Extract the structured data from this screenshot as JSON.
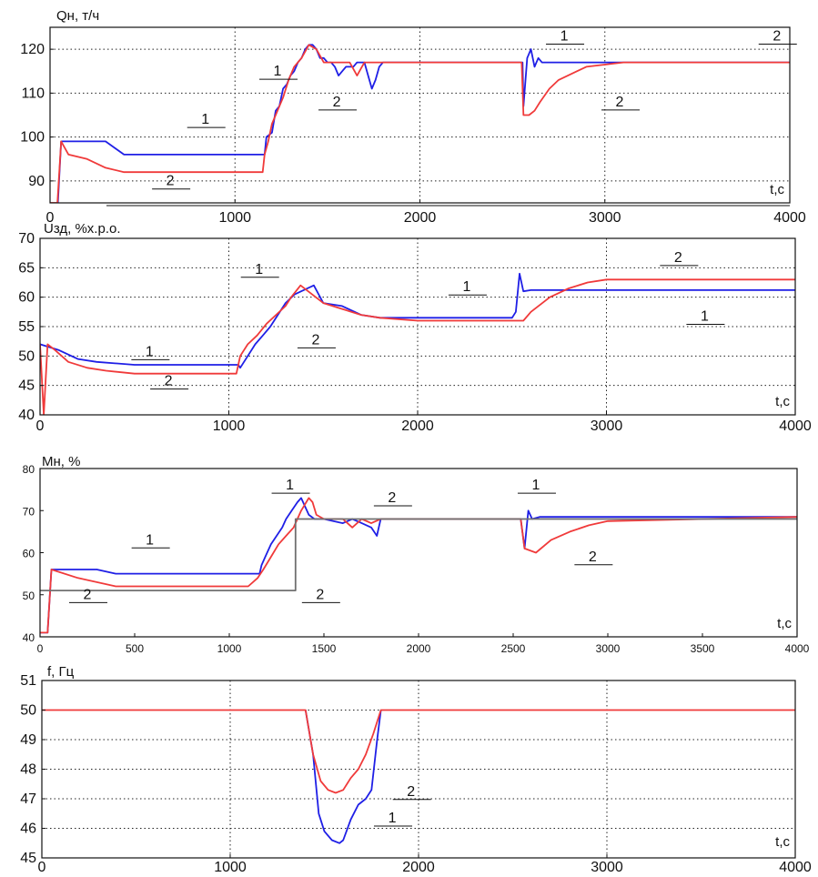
{
  "colors": {
    "series1": "#1f1fe6",
    "series2": "#f03a3a",
    "gray": "#707070",
    "grid": "#222222"
  },
  "chart_data": [
    {
      "type": "line",
      "title": "Qн, т/ч",
      "xlabel": "t,c",
      "xlim": [
        0,
        4000
      ],
      "ylim": [
        85,
        125
      ],
      "xticks": [
        0,
        1000,
        2000,
        3000,
        4000
      ],
      "yticks": [
        90,
        100,
        110,
        120
      ],
      "grid": true,
      "series": [
        {
          "name": "1",
          "color": "#1f1fe6",
          "x": [
            0,
            40,
            60,
            300,
            400,
            1160,
            1170,
            1200,
            1220,
            1240,
            1260,
            1280,
            1300,
            1320,
            1340,
            1360,
            1380,
            1400,
            1420,
            1440,
            1460,
            1480,
            1500,
            1520,
            1540,
            1560,
            1580,
            1600,
            1620,
            1640,
            1660,
            1680,
            1700,
            1720,
            1740,
            1760,
            1780,
            1800,
            1830,
            1850,
            2000,
            2050,
            2100,
            2555,
            2560,
            2580,
            2600,
            2620,
            2640,
            2660,
            2700,
            3000,
            4000
          ],
          "y": [
            83,
            83,
            99,
            99,
            96,
            96,
            100,
            101,
            106,
            107,
            111,
            112,
            114,
            115,
            117,
            118,
            120,
            121,
            121,
            120,
            118,
            118,
            117,
            117,
            116,
            114,
            115,
            116,
            116,
            116,
            117,
            117,
            117,
            114,
            111,
            113,
            116,
            117,
            117,
            117,
            117,
            117,
            117,
            117,
            107,
            118,
            120,
            116,
            118,
            117,
            117,
            117,
            117
          ]
        },
        {
          "name": "2",
          "color": "#f03a3a",
          "x": [
            0,
            40,
            60,
            100,
            200,
            300,
            400,
            500,
            1100,
            1150,
            1160,
            1180,
            1200,
            1230,
            1260,
            1290,
            1320,
            1360,
            1400,
            1440,
            1480,
            1520,
            1560,
            1580,
            1620,
            1660,
            1700,
            1720,
            1760,
            1800,
            1850,
            2000,
            2100,
            2550,
            2560,
            2590,
            2620,
            2650,
            2700,
            2750,
            2800,
            2900,
            3000,
            3100,
            4000
          ],
          "y": [
            85,
            85,
            99,
            96,
            95,
            93,
            92,
            92,
            92,
            92,
            96,
            99,
            103,
            106,
            109,
            113,
            116,
            118,
            121,
            120,
            117,
            117,
            117,
            117,
            117,
            114,
            117,
            117,
            117,
            117,
            117,
            117,
            117,
            117,
            105,
            105,
            106,
            108,
            111,
            113,
            114,
            116,
            116.5,
            117,
            117
          ]
        }
      ],
      "annotations": [
        {
          "text": "1",
          "x": 840,
          "y": 103
        },
        {
          "text": "2",
          "x": 650,
          "y": 89
        },
        {
          "text": "1",
          "x": 1230,
          "y": 114
        },
        {
          "text": "2",
          "x": 1550,
          "y": 107
        },
        {
          "text": "1",
          "x": 2780,
          "y": 122
        },
        {
          "text": "2",
          "x": 3080,
          "y": 107
        },
        {
          "text": "2",
          "x": 3930,
          "y": 122
        }
      ]
    },
    {
      "type": "line",
      "title": "Uзд, %х.р.о.",
      "xlabel": "t,c",
      "xlim": [
        0,
        4000
      ],
      "ylim": [
        40,
        70
      ],
      "xticks": [
        0,
        1000,
        2000,
        3000,
        4000
      ],
      "yticks": [
        40,
        45,
        50,
        55,
        60,
        65,
        70
      ],
      "grid": true,
      "series": [
        {
          "name": "1",
          "color": "#1f1fe6",
          "x": [
            0,
            100,
            200,
            300,
            500,
            1050,
            1060,
            1100,
            1140,
            1180,
            1220,
            1260,
            1300,
            1350,
            1450,
            1500,
            1600,
            1700,
            1800,
            2000,
            2500,
            2520,
            2540,
            2560,
            2600,
            2640,
            3000,
            4000
          ],
          "y": [
            52,
            51,
            49.5,
            49,
            48.5,
            48.5,
            48,
            50,
            52,
            53.5,
            55,
            57,
            59,
            60.5,
            62,
            59,
            58.5,
            57,
            56.5,
            56.5,
            56.5,
            57.5,
            64,
            61,
            61.2,
            61.2,
            61.2,
            61.2
          ]
        },
        {
          "name": "2",
          "color": "#f03a3a",
          "x": [
            0,
            20,
            40,
            80,
            150,
            250,
            350,
            500,
            1040,
            1060,
            1100,
            1150,
            1200,
            1250,
            1300,
            1330,
            1380,
            1500,
            1600,
            1700,
            1800,
            2000,
            2500,
            2560,
            2600,
            2700,
            2800,
            2900,
            3000,
            3200,
            4000
          ],
          "y": [
            52,
            40,
            52,
            51,
            49,
            48,
            47.5,
            47,
            47,
            50,
            52,
            53.5,
            55.5,
            57,
            58.5,
            60,
            62,
            59,
            58,
            57,
            56.5,
            56,
            56,
            56,
            57.5,
            60,
            61.5,
            62.5,
            63,
            63,
            63
          ]
        }
      ],
      "annotations": [
        {
          "text": "1",
          "x": 1160,
          "y": 64
        },
        {
          "text": "2",
          "x": 1460,
          "y": 52
        },
        {
          "text": "1",
          "x": 580,
          "y": 50
        },
        {
          "text": "2",
          "x": 680,
          "y": 45
        },
        {
          "text": "1",
          "x": 2260,
          "y": 61
        },
        {
          "text": "2",
          "x": 3380,
          "y": 66
        },
        {
          "text": "1",
          "x": 3520,
          "y": 56
        }
      ]
    },
    {
      "type": "line",
      "title": "Мн, %",
      "xlabel": "t,c",
      "xlim": [
        0,
        4000
      ],
      "ylim": [
        40,
        80
      ],
      "xticks": [
        0,
        500,
        1000,
        1500,
        2000,
        2500,
        3000,
        3500,
        4000
      ],
      "yticks": [
        40,
        50,
        60,
        70,
        80
      ],
      "grid": false,
      "series": [
        {
          "name": "1",
          "color": "#1f1fe6",
          "x": [
            0,
            40,
            60,
            300,
            400,
            1160,
            1170,
            1190,
            1220,
            1250,
            1280,
            1300,
            1330,
            1360,
            1380,
            1400,
            1420,
            1450,
            1500,
            1600,
            1650,
            1700,
            1750,
            1780,
            1800,
            2000,
            2540,
            2560,
            2580,
            2600,
            2640,
            3000,
            4000
          ],
          "y": [
            41,
            41,
            56,
            56,
            55,
            55,
            57,
            59,
            62,
            64,
            66,
            68,
            70,
            72,
            73,
            71,
            69,
            68,
            68,
            67,
            68,
            67,
            66,
            64,
            68,
            68,
            68,
            61,
            70,
            68,
            68.5,
            68.5,
            68.5
          ]
        },
        {
          "name": "2",
          "color": "#f03a3a",
          "x": [
            0,
            40,
            60,
            200,
            400,
            1100,
            1150,
            1180,
            1220,
            1260,
            1300,
            1340,
            1380,
            1420,
            1440,
            1460,
            1500,
            1600,
            1650,
            1700,
            1750,
            1800,
            2000,
            2540,
            2560,
            2620,
            2700,
            2800,
            2900,
            3000,
            4000
          ],
          "y": [
            41,
            41,
            56,
            54,
            52,
            52,
            54,
            56,
            59,
            62,
            64,
            66,
            70,
            73,
            72,
            69,
            68,
            68,
            66,
            68,
            67,
            68,
            68,
            68,
            61,
            60,
            63,
            65,
            66.5,
            67.5,
            68.5
          ]
        },
        {
          "color": "#707070",
          "x": [
            0,
            1350,
            1350,
            1400,
            1400,
            4000
          ],
          "y": [
            51,
            51,
            68,
            68,
            68,
            68
          ]
        }
      ],
      "annotations": [
        {
          "text": "1",
          "x": 1320,
          "y": 75
        },
        {
          "text": "1",
          "x": 580,
          "y": 62
        },
        {
          "text": "2",
          "x": 250,
          "y": 49
        },
        {
          "text": "2",
          "x": 1480,
          "y": 49
        },
        {
          "text": "2",
          "x": 1860,
          "y": 72
        },
        {
          "text": "1",
          "x": 2620,
          "y": 75
        },
        {
          "text": "2",
          "x": 2920,
          "y": 58
        }
      ]
    },
    {
      "type": "line",
      "title": "f, Гц",
      "xlabel": "t,c",
      "xlim": [
        0,
        4000
      ],
      "ylim": [
        45,
        51
      ],
      "xticks": [
        0,
        1000,
        2000,
        3000,
        4000
      ],
      "yticks": [
        45,
        46,
        47,
        48,
        49,
        50,
        51
      ],
      "grid": true,
      "series": [
        {
          "name": "1",
          "color": "#1f1fe6",
          "x": [
            1400,
            1440,
            1470,
            1500,
            1540,
            1580,
            1600,
            1640,
            1680,
            1720,
            1750,
            1780,
            1800
          ],
          "y": [
            50,
            48.5,
            46.5,
            45.9,
            45.6,
            45.5,
            45.6,
            46.3,
            46.8,
            47,
            47.3,
            49,
            50
          ]
        },
        {
          "name": "2",
          "color": "#f03a3a",
          "x": [
            0,
            1400,
            1440,
            1480,
            1520,
            1560,
            1600,
            1640,
            1680,
            1720,
            1760,
            1800,
            4000
          ],
          "y": [
            50,
            50,
            48.5,
            47.6,
            47.3,
            47.2,
            47.3,
            47.7,
            48,
            48.5,
            49.2,
            50,
            50
          ]
        }
      ],
      "annotations": [
        {
          "text": "2",
          "x": 1960,
          "y": 47.1
        },
        {
          "text": "1",
          "x": 1860,
          "y": 46.2
        }
      ]
    }
  ]
}
